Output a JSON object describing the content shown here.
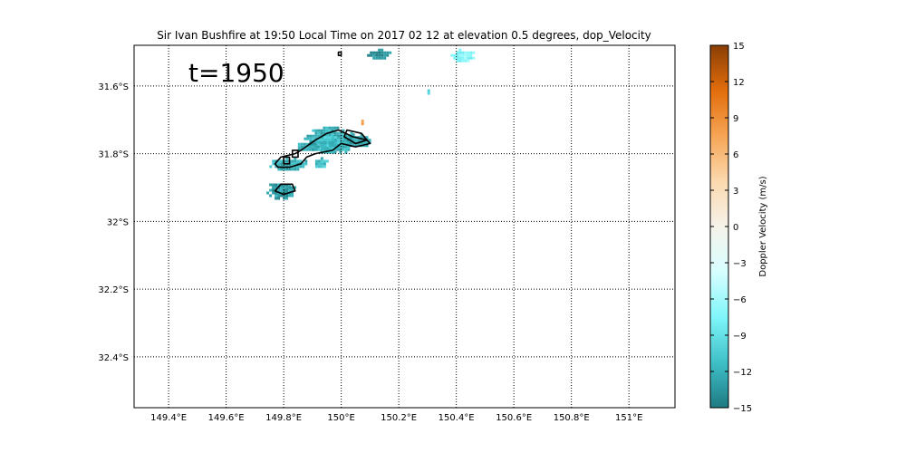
{
  "figure": {
    "title": "Sir Ivan Bushfire at 19:50 Local Time on 2017 02 12 at elevation 0.5 degrees, dop_Velocity",
    "annotation": "t=1950"
  },
  "map": {
    "x_ticks": [
      {
        "value": 149.4,
        "label": "149.4°E"
      },
      {
        "value": 149.6,
        "label": "149.6°E"
      },
      {
        "value": 149.8,
        "label": "149.8°E"
      },
      {
        "value": 150.0,
        "label": "150°E"
      },
      {
        "value": 150.2,
        "label": "150.2°E"
      },
      {
        "value": 150.4,
        "label": "150.4°E"
      },
      {
        "value": 150.6,
        "label": "150.6°E"
      },
      {
        "value": 150.8,
        "label": "150.8°E"
      },
      {
        "value": 151.0,
        "label": "151°E"
      }
    ],
    "y_ticks": [
      {
        "value": -31.6,
        "label": "31.6°S"
      },
      {
        "value": -31.8,
        "label": "31.8°S"
      },
      {
        "value": -32.0,
        "label": "32°S"
      },
      {
        "value": -32.2,
        "label": "32.2°S"
      },
      {
        "value": -32.4,
        "label": "32.4°S"
      }
    ],
    "lon_range": [
      149.28,
      151.16
    ],
    "lat_range": [
      -32.55,
      -31.48
    ],
    "gridlines": "dotted"
  },
  "chart_data": {
    "type": "heatmap",
    "title": "Sir Ivan Bushfire at 19:50 Local Time on 2017 02 12 at elevation 0.5 degrees, dop_Velocity",
    "xlim": [
      149.28,
      151.16
    ],
    "ylim": [
      -32.55,
      -31.48
    ],
    "grid": true,
    "echo_regions": [
      {
        "lon": [
          149.87,
          150.04
        ],
        "lat": [
          -31.8,
          -31.72
        ],
        "velocity": -12
      },
      {
        "lon": [
          149.91,
          150.0
        ],
        "lat": [
          -31.79,
          -31.74
        ],
        "velocity": -11
      },
      {
        "lon": [
          150.0,
          150.11
        ],
        "lat": [
          -31.78,
          -31.74
        ],
        "velocity": -13
      },
      {
        "lon": [
          149.84,
          149.92
        ],
        "lat": [
          -31.79,
          -31.76
        ],
        "velocity": -12
      },
      {
        "lon": [
          149.75,
          149.88
        ],
        "lat": [
          -31.85,
          -31.81
        ],
        "velocity": -12
      },
      {
        "lon": [
          149.9,
          149.95
        ],
        "lat": [
          -31.84,
          -31.81
        ],
        "velocity": -11
      },
      {
        "lon": [
          149.74,
          149.84
        ],
        "lat": [
          -31.93,
          -31.88
        ],
        "velocity": -13
      },
      {
        "lon": [
          150.09,
          150.17
        ],
        "lat": [
          -31.52,
          -31.49
        ],
        "velocity": -14
      },
      {
        "lon": [
          150.38,
          150.46
        ],
        "lat": [
          -31.53,
          -31.49
        ],
        "velocity": -7
      },
      {
        "lon": [
          150.29,
          150.31
        ],
        "lat": [
          -31.62,
          -31.61
        ],
        "velocity": -10
      },
      {
        "lon": [
          150.06,
          150.08
        ],
        "lat": [
          -31.71,
          -31.7
        ],
        "velocity": 7
      }
    ],
    "contours": [
      {
        "points": [
          [
            149.86,
            -31.79
          ],
          [
            149.91,
            -31.76
          ],
          [
            149.95,
            -31.74
          ],
          [
            149.99,
            -31.73
          ],
          [
            150.04,
            -31.75
          ],
          [
            150.09,
            -31.76
          ],
          [
            150.1,
            -31.77
          ],
          [
            150.05,
            -31.78
          ],
          [
            150.0,
            -31.77
          ],
          [
            149.97,
            -31.79
          ],
          [
            149.91,
            -31.8
          ],
          [
            149.88,
            -31.81
          ],
          [
            149.86,
            -31.83
          ],
          [
            149.82,
            -31.84
          ],
          [
            149.78,
            -31.84
          ],
          [
            149.77,
            -31.83
          ],
          [
            149.79,
            -31.81
          ],
          [
            149.84,
            -31.8
          ]
        ]
      },
      {
        "points": [
          [
            149.79,
            -31.89
          ],
          [
            149.83,
            -31.89
          ],
          [
            149.84,
            -31.91
          ],
          [
            149.8,
            -31.92
          ],
          [
            149.77,
            -31.91
          ]
        ]
      },
      {
        "points": [
          [
            150.02,
            -31.73
          ],
          [
            150.07,
            -31.74
          ],
          [
            150.09,
            -31.76
          ],
          [
            150.05,
            -31.77
          ],
          [
            150.01,
            -31.75
          ]
        ]
      },
      {
        "points": [
          [
            149.83,
            -31.79
          ],
          [
            149.85,
            -31.79
          ],
          [
            149.85,
            -31.81
          ],
          [
            149.83,
            -31.81
          ]
        ]
      },
      {
        "points": [
          [
            149.8,
            -31.81
          ],
          [
            149.82,
            -31.81
          ],
          [
            149.82,
            -31.83
          ],
          [
            149.8,
            -31.83
          ]
        ]
      },
      {
        "points": [
          [
            149.99,
            -31.5
          ],
          [
            150.0,
            -31.5
          ],
          [
            150.0,
            -31.51
          ],
          [
            149.99,
            -31.51
          ]
        ]
      }
    ],
    "colorbar": {
      "label": "Doppler Velocity (m/s)",
      "range": [
        -15,
        15
      ],
      "ticks": [
        15,
        12,
        9,
        6,
        3,
        0,
        -3,
        -6,
        -9,
        -12,
        -15
      ],
      "colors": [
        "#1e7a82",
        "#3fc0c8",
        "#7ff6fa",
        "#d8feff",
        "#f6f3ea",
        "#fbd9ae",
        "#f6a555",
        "#e26d0c",
        "#8a3e05"
      ]
    }
  }
}
